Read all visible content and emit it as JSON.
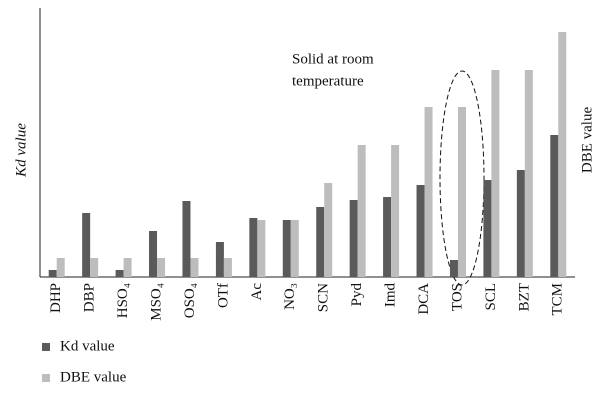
{
  "chart_data": {
    "type": "bar",
    "categories": [
      "DHP",
      "DBP",
      "HSO₄",
      "MSO₄",
      "OSO₄",
      "OTf",
      "Ac",
      "NO₃",
      "SCN",
      "Pyd",
      "Imd",
      "DCA",
      "TOS",
      "SCL",
      "BZT",
      "TCM"
    ],
    "series": [
      {
        "name": "Kd value",
        "color": "#5a5a5a",
        "values": [
          7,
          64,
          7,
          46,
          76,
          35,
          59,
          57,
          70,
          77,
          80,
          92,
          17,
          97,
          107,
          142
        ]
      },
      {
        "name": "DBE value",
        "color": "#bdbdbd",
        "axis": "y2",
        "values": [
          19,
          19,
          19,
          19,
          19,
          19,
          57,
          57,
          94,
          132,
          132,
          170,
          170,
          207,
          207,
          245
        ]
      }
    ],
    "ylabel": "Kd value",
    "y2label": "DBE value",
    "ylim": [
      0,
      270
    ],
    "y2lim": [
      0,
      270
    ],
    "annotations": [
      "Solid at room",
      "temperature"
    ],
    "grid": false,
    "legend": "bottom-left"
  }
}
